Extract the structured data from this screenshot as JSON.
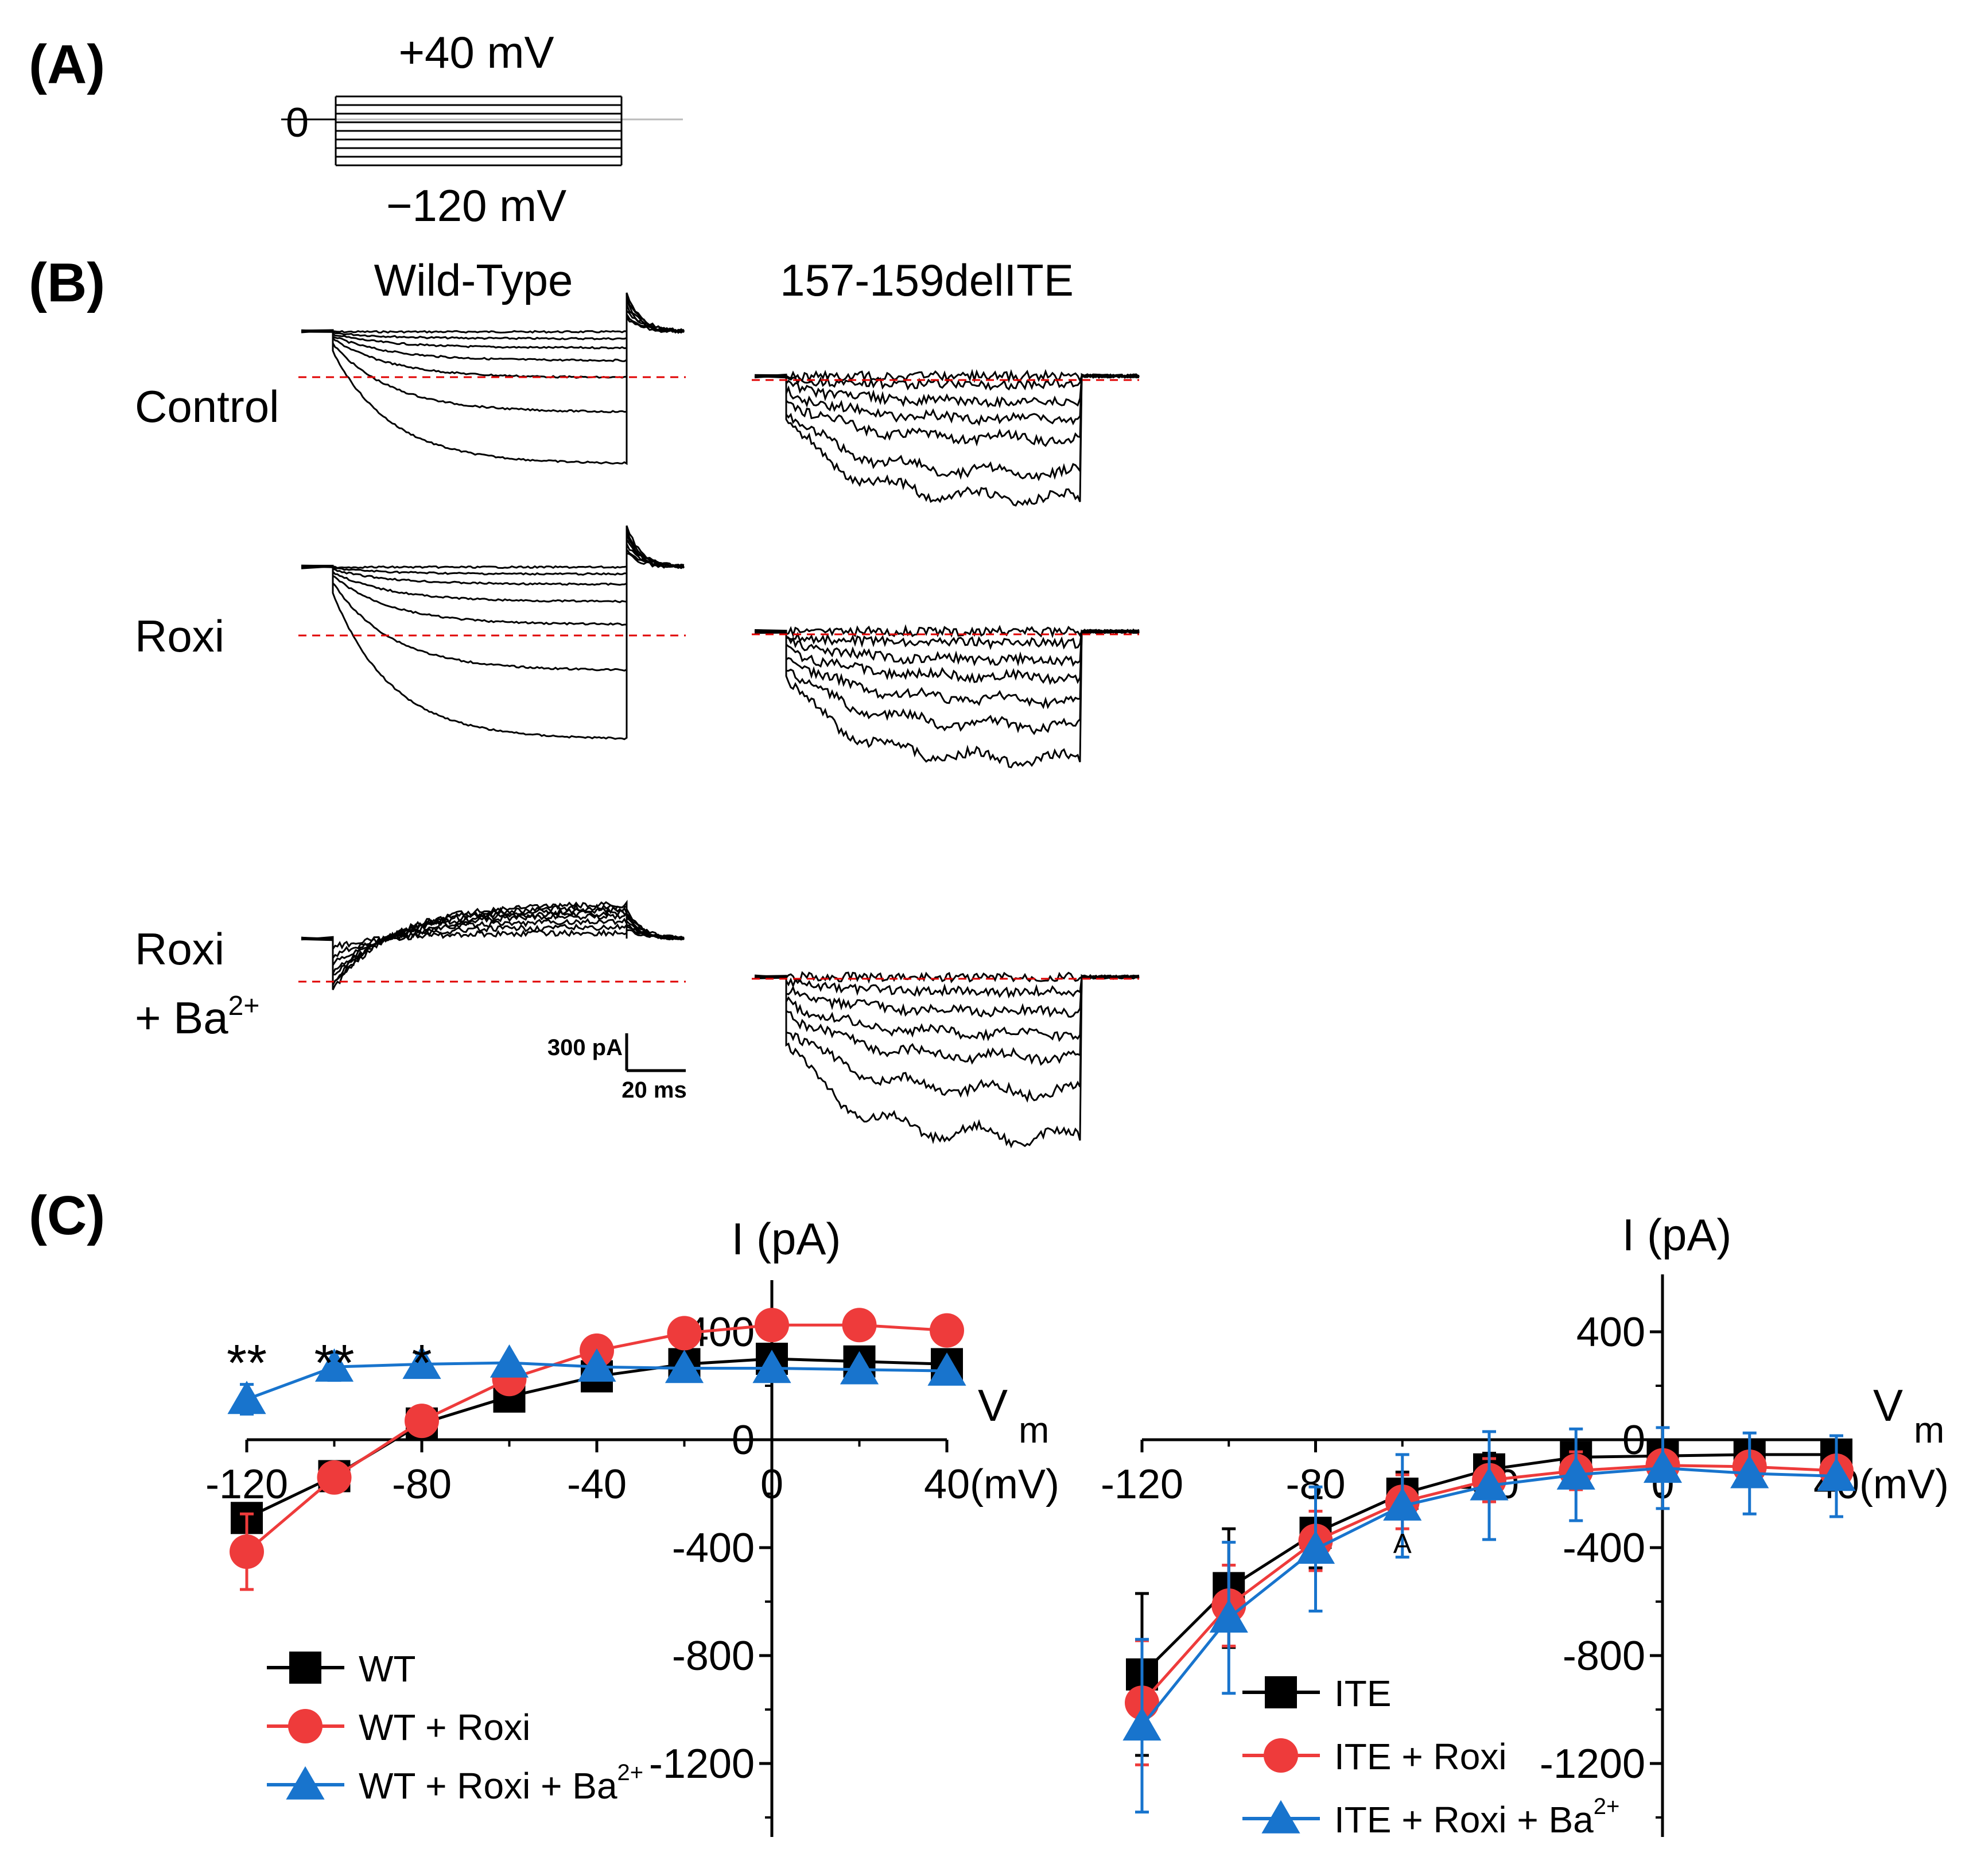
{
  "panels": {
    "a": "(A)",
    "b": "(B)",
    "c": "(C)"
  },
  "protocol": {
    "top_label": "+40 mV",
    "bottom_label": "−120 mV",
    "zero_label": "0"
  },
  "columns": {
    "wt": "Wild-Type",
    "ite": "157-159delITE"
  },
  "rows": {
    "control": "Control",
    "roxi": "Roxi",
    "roxi_ba_1": "Roxi",
    "roxi_ba_2": "+ Ba",
    "roxi_ba_sup": "2+"
  },
  "scalebar": {
    "current": "300 pA",
    "time": "20 ms"
  },
  "colors": {
    "wt": "#000000",
    "roxi": "#EE3B3B",
    "roxi_ba": "#1874CD",
    "dashed": "#E00000"
  },
  "chart_data": [
    {
      "type": "line",
      "ylabel": "I (pA)",
      "xlabel": "V",
      "xlabel_sub": "m",
      "xunit": "(mV)",
      "xlim": [
        -120,
        40
      ],
      "ylim": [
        -1450,
        520
      ],
      "xticks": [
        "-120",
        "-80",
        "-40",
        "0",
        "40"
      ],
      "yticks": [
        "400",
        "0",
        "-400",
        "-800",
        "-1200"
      ],
      "legend_loc": "lower-left",
      "x": [
        -120,
        -100,
        -80,
        -60,
        -40,
        -20,
        0,
        20,
        40
      ],
      "series": [
        {
          "name": "WT",
          "sup": "",
          "marker": "square",
          "color": "#000000",
          "values": [
            -290,
            -135,
            60,
            160,
            235,
            280,
            300,
            290,
            280
          ],
          "errors": [
            25,
            25,
            15,
            15,
            20,
            20,
            20,
            20,
            20
          ]
        },
        {
          "name": "WT + Roxi",
          "sup": "",
          "marker": "circle",
          "color": "#EE3B3B",
          "values": [
            -415,
            -140,
            70,
            225,
            330,
            395,
            425,
            425,
            405
          ],
          "errors": [
            140,
            40,
            15,
            15,
            15,
            15,
            15,
            15,
            15
          ]
        },
        {
          "name": "WT + Roxi + Ba",
          "sup": "2+",
          "marker": "triangle",
          "color": "#1874CD",
          "values": [
            150,
            270,
            280,
            285,
            270,
            265,
            265,
            260,
            255
          ],
          "errors": [
            55,
            50,
            40,
            20,
            20,
            20,
            20,
            20,
            20
          ]
        }
      ],
      "significance": [
        {
          "x": -120,
          "label": "**"
        },
        {
          "x": -100,
          "label": "**"
        },
        {
          "x": -80,
          "label": "*"
        }
      ]
    },
    {
      "type": "line",
      "ylabel": "I (pA)",
      "xlabel": "V",
      "xlabel_sub": "m",
      "xunit": "(mV)",
      "xlim": [
        -120,
        40
      ],
      "ylim": [
        -1450,
        520
      ],
      "xticks": [
        "-120",
        "-80",
        "-40",
        "0",
        "40"
      ],
      "yticks": [
        "400",
        "0",
        "-400",
        "-800",
        "-1200"
      ],
      "legend_loc": "lower-center",
      "x": [
        -120,
        -100,
        -80,
        -60,
        -40,
        -20,
        0,
        20,
        40
      ],
      "series": [
        {
          "name": "ITE",
          "sup": "",
          "marker": "square",
          "color": "#000000",
          "values": [
            -870,
            -550,
            -345,
            -200,
            -110,
            -65,
            -60,
            -55,
            -55
          ],
          "errors": [
            300,
            220,
            130,
            80,
            60,
            40,
            30,
            25,
            25
          ]
        },
        {
          "name": "ITE + Roxi",
          "sup": "",
          "marker": "circle",
          "color": "#EE3B3B",
          "values": [
            -975,
            -615,
            -375,
            -230,
            -150,
            -115,
            -95,
            -100,
            -115
          ],
          "errors": [
            230,
            150,
            110,
            100,
            80,
            70,
            50,
            50,
            50
          ]
        },
        {
          "name": "ITE + Roxi + Ba",
          "sup": "2+",
          "marker": "triangle",
          "color": "#1874CD",
          "values": [
            -1060,
            -660,
            -405,
            -245,
            -170,
            -130,
            -105,
            -125,
            -135
          ],
          "errors": [
            320,
            280,
            230,
            190,
            200,
            170,
            150,
            150,
            150
          ]
        }
      ],
      "annotations": [
        {
          "x": -60,
          "label": "A"
        }
      ]
    }
  ]
}
